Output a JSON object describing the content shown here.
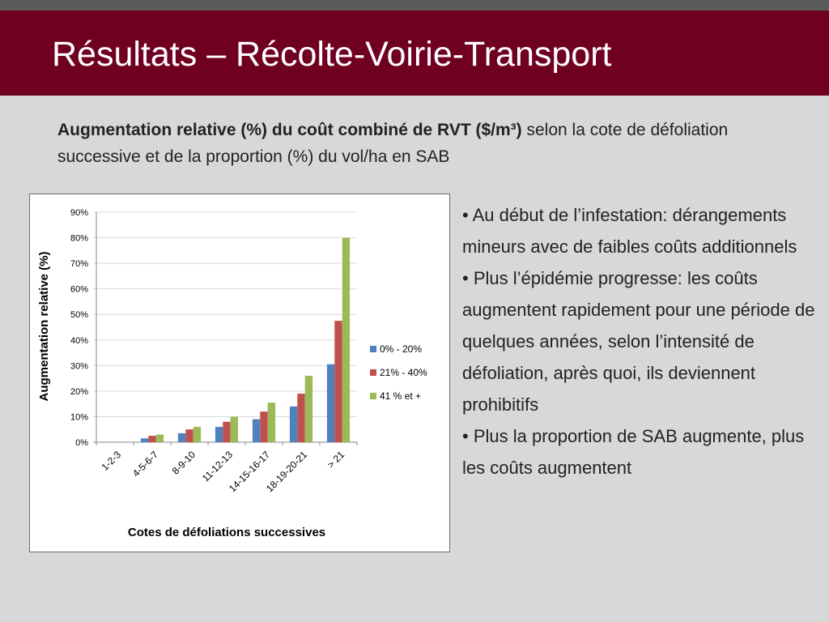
{
  "slide": {
    "title": "Résultats –  Récolte-Voirie-Transport",
    "subtitle_bold": "Augmentation relative (%) du coût combiné de RVT ($/m³)",
    "subtitle_rest": " selon la cote de défoliation successive et de la proportion (%) du vol/ha en SAB"
  },
  "bullets": [
    "• Au début de l’infestation: dérangements mineurs avec de faibles coûts additionnels",
    "• Plus l’épidémie progresse: les coûts augmentent rapidement pour une période de quelques années, selon l’intensité de défoliation, après quoi, ils deviennent prohibitifs",
    "• Plus la proportion de SAB augmente, plus les coûts augmentent"
  ],
  "chart_data": {
    "type": "bar",
    "title": "",
    "xlabel": "Cotes de défoliations successives",
    "ylabel": "Augmentation relative (%)",
    "categories": [
      "1-2-3",
      "4-5-6-7",
      "8-9-10",
      "11-12-13",
      "14-15-16-17",
      "18-19-20-21",
      "> 21"
    ],
    "series": [
      {
        "name": "0% - 20%",
        "color": "#4f81bd",
        "values": [
          0,
          1.5,
          3.5,
          6,
          9,
          14,
          30.5
        ]
      },
      {
        "name": "21% - 40%",
        "color": "#c0504d",
        "values": [
          0,
          2.5,
          5,
          8,
          12,
          19,
          47.5
        ]
      },
      {
        "name": "41 % et +",
        "color": "#9bbb59",
        "values": [
          0,
          3,
          6,
          10,
          15.5,
          26,
          80
        ]
      }
    ],
    "ylim": [
      0,
      90
    ],
    "yticks": [
      "0%",
      "10%",
      "20%",
      "30%",
      "40%",
      "50%",
      "60%",
      "70%",
      "80%",
      "90%"
    ],
    "grid": true,
    "legend": "right"
  }
}
